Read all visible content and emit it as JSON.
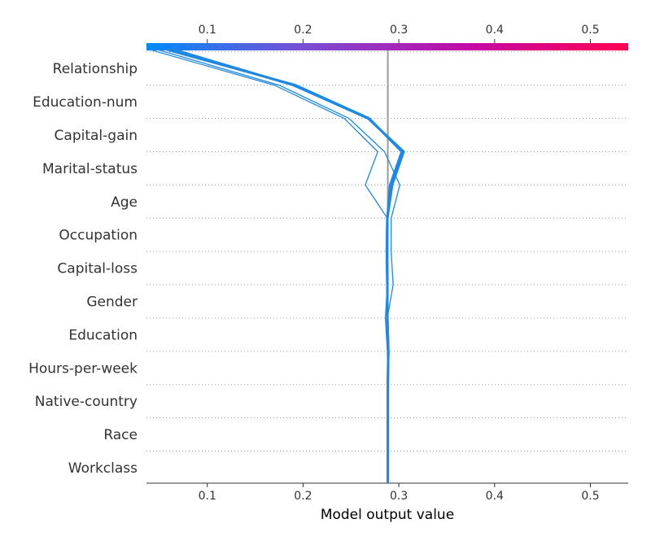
{
  "chart_data": {
    "type": "line",
    "subtype": "shap-decision-plot",
    "xlabel": "Model output value",
    "xlim": [
      0.0365,
      0.5395
    ],
    "ticks": [
      0.1,
      0.2,
      0.3,
      0.4,
      0.5
    ],
    "tick_labels": [
      "0.1",
      "0.2",
      "0.3",
      "0.4",
      "0.5"
    ],
    "base_value": 0.2885,
    "features": [
      "Workclass",
      "Race",
      "Native-country",
      "Hours-per-week",
      "Education",
      "Gender",
      "Capital-loss",
      "Occupation",
      "Age",
      "Marital-status",
      "Capital-gain",
      "Education-num",
      "Relationship"
    ],
    "grid": "dotted-horizontal",
    "colormap": [
      "#008bfb",
      "#7b4dd2",
      "#c309a6",
      "#ff0051"
    ],
    "base_line_color": "#999999",
    "line_color": "#1e88e5",
    "series": [
      {
        "weight": "bold",
        "values": [
          0.2885,
          0.2885,
          0.2885,
          0.2885,
          0.289,
          0.288,
          0.288,
          0.2875,
          0.288,
          0.293,
          0.305,
          0.268,
          0.19,
          0.065
        ]
      },
      {
        "weight": "bold",
        "values": [
          0.2885,
          0.2885,
          0.2885,
          0.2885,
          0.289,
          0.288,
          0.288,
          0.2875,
          0.288,
          0.291,
          0.303,
          0.269,
          0.192,
          0.058
        ]
      },
      {
        "weight": "thin",
        "values": [
          0.2885,
          0.2885,
          0.2885,
          0.2885,
          0.288,
          0.286,
          0.288,
          0.287,
          0.288,
          0.265,
          0.278,
          0.243,
          0.17,
          0.04
        ]
      },
      {
        "weight": "thin",
        "values": [
          0.2885,
          0.2885,
          0.2885,
          0.2885,
          0.289,
          0.288,
          0.294,
          0.292,
          0.292,
          0.301,
          0.285,
          0.248,
          0.175,
          0.048
        ]
      }
    ]
  }
}
